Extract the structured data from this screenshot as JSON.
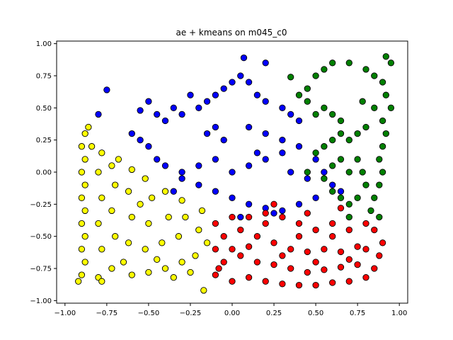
{
  "chart_data": {
    "type": "scatter",
    "title": "ae + kmeans on m045_c0",
    "xlabel": "",
    "ylabel": "",
    "xlim": [
      -1.05,
      1.05
    ],
    "ylim": [
      -1.02,
      1.02
    ],
    "xticks": [
      -1.0,
      -0.75,
      -0.5,
      -0.25,
      0.0,
      0.25,
      0.5,
      0.75,
      1.0
    ],
    "xtick_labels": [
      "−1.00",
      "−0.75",
      "−0.50",
      "−0.25",
      "0.00",
      "0.25",
      "0.50",
      "0.75",
      "1.00"
    ],
    "yticks": [
      -1.0,
      -0.75,
      -0.5,
      -0.25,
      0.0,
      0.25,
      0.5,
      0.75,
      1.0
    ],
    "ytick_labels": [
      "−1.00",
      "−0.75",
      "−0.50",
      "−0.25",
      "0.00",
      "0.25",
      "0.50",
      "0.75",
      "1.00"
    ],
    "grid": false,
    "legend": "none",
    "marker": "circle",
    "marker_edge": "#000000",
    "series": [
      {
        "color": "#ffff00",
        "points": [
          [
            -0.92,
            -0.85
          ],
          [
            -0.9,
            -0.8
          ],
          [
            -0.88,
            -0.7
          ],
          [
            -0.9,
            -0.6
          ],
          [
            -0.88,
            -0.5
          ],
          [
            -0.9,
            -0.4
          ],
          [
            -0.88,
            -0.3
          ],
          [
            -0.9,
            -0.2
          ],
          [
            -0.88,
            -0.1
          ],
          [
            -0.9,
            0.0
          ],
          [
            -0.88,
            0.1
          ],
          [
            -0.9,
            0.2
          ],
          [
            -0.88,
            0.3
          ],
          [
            -0.86,
            0.35
          ],
          [
            -0.8,
            -0.82
          ],
          [
            -0.78,
            -0.6
          ],
          [
            -0.8,
            -0.4
          ],
          [
            -0.78,
            -0.2
          ],
          [
            -0.8,
            0.0
          ],
          [
            -0.72,
            -0.75
          ],
          [
            -0.7,
            -0.5
          ],
          [
            -0.72,
            -0.3
          ],
          [
            -0.7,
            -0.1
          ],
          [
            -0.72,
            0.05
          ],
          [
            -0.6,
            -0.8
          ],
          [
            -0.62,
            -0.55
          ],
          [
            -0.6,
            -0.35
          ],
          [
            -0.62,
            -0.15
          ],
          [
            -0.6,
            0.02
          ],
          [
            -0.5,
            -0.78
          ],
          [
            -0.52,
            -0.6
          ],
          [
            -0.5,
            -0.4
          ],
          [
            -0.48,
            -0.2
          ],
          [
            -0.52,
            -0.05
          ],
          [
            -0.4,
            -0.75
          ],
          [
            -0.42,
            -0.55
          ],
          [
            -0.38,
            -0.35
          ],
          [
            -0.4,
            -0.15
          ],
          [
            -0.3,
            -0.7
          ],
          [
            -0.32,
            -0.5
          ],
          [
            -0.28,
            -0.35
          ],
          [
            -0.3,
            -0.22
          ],
          [
            -0.22,
            -0.65
          ],
          [
            -0.2,
            -0.45
          ],
          [
            -0.18,
            -0.3
          ],
          [
            -0.15,
            -0.55
          ],
          [
            -0.17,
            -0.92
          ],
          [
            -0.68,
            0.1
          ],
          [
            -0.78,
            0.15
          ],
          [
            -0.84,
            0.2
          ],
          [
            -0.78,
            -0.85
          ],
          [
            -0.65,
            -0.7
          ],
          [
            -0.45,
            -0.68
          ],
          [
            -0.35,
            -0.82
          ],
          [
            -0.25,
            -0.78
          ],
          [
            -0.55,
            -0.25
          ]
        ]
      },
      {
        "color": "#0000ff",
        "points": [
          [
            -0.5,
            0.55
          ],
          [
            -0.45,
            0.45
          ],
          [
            -0.4,
            0.4
          ],
          [
            -0.35,
            0.5
          ],
          [
            -0.3,
            0.45
          ],
          [
            -0.2,
            0.5
          ],
          [
            -0.15,
            0.55
          ],
          [
            -0.1,
            0.6
          ],
          [
            -0.05,
            0.65
          ],
          [
            0.0,
            0.7
          ],
          [
            0.05,
            0.75
          ],
          [
            0.1,
            0.7
          ],
          [
            0.15,
            0.6
          ],
          [
            0.2,
            0.55
          ],
          [
            0.3,
            0.5
          ],
          [
            0.35,
            0.45
          ],
          [
            0.4,
            0.4
          ],
          [
            -0.6,
            0.3
          ],
          [
            -0.55,
            0.25
          ],
          [
            -0.5,
            0.2
          ],
          [
            -0.45,
            0.1
          ],
          [
            -0.4,
            0.05
          ],
          [
            -0.3,
            0.0
          ],
          [
            -0.2,
            0.05
          ],
          [
            -0.1,
            0.1
          ],
          [
            0.0,
            0.0
          ],
          [
            0.1,
            0.05
          ],
          [
            0.2,
            0.1
          ],
          [
            0.3,
            0.15
          ],
          [
            0.4,
            0.2
          ],
          [
            0.5,
            0.1
          ],
          [
            0.55,
            0.0
          ],
          [
            0.6,
            -0.1
          ],
          [
            0.65,
            -0.15
          ],
          [
            0.5,
            -0.2
          ],
          [
            0.4,
            -0.25
          ],
          [
            0.3,
            -0.3
          ],
          [
            0.2,
            -0.28
          ],
          [
            0.1,
            -0.25
          ],
          [
            0.0,
            -0.2
          ],
          [
            -0.1,
            -0.15
          ],
          [
            -0.2,
            -0.1
          ],
          [
            -0.3,
            -0.05
          ],
          [
            -0.35,
            -0.15
          ],
          [
            0.1,
            0.35
          ],
          [
            0.2,
            0.3
          ],
          [
            0.3,
            0.25
          ],
          [
            -0.1,
            0.35
          ],
          [
            -0.05,
            0.25
          ],
          [
            0.15,
            0.15
          ],
          [
            -0.15,
            0.3
          ],
          [
            -0.75,
            0.64
          ],
          [
            -0.8,
            0.45
          ],
          [
            0.07,
            0.89
          ],
          [
            0.2,
            0.85
          ],
          [
            -0.25,
            0.6
          ],
          [
            0.05,
            -0.35
          ],
          [
            0.25,
            -0.32
          ],
          [
            -0.55,
            0.48
          ],
          [
            0.35,
            0.0
          ],
          [
            0.45,
            -0.05
          ]
        ]
      },
      {
        "color": "#008000",
        "points": [
          [
            0.45,
            0.65
          ],
          [
            0.5,
            0.75
          ],
          [
            0.55,
            0.8
          ],
          [
            0.6,
            0.85
          ],
          [
            0.7,
            0.85
          ],
          [
            0.8,
            0.8
          ],
          [
            0.85,
            0.75
          ],
          [
            0.9,
            0.7
          ],
          [
            0.92,
            0.6
          ],
          [
            0.95,
            0.5
          ],
          [
            0.9,
            0.4
          ],
          [
            0.92,
            0.3
          ],
          [
            0.9,
            0.2
          ],
          [
            0.88,
            0.1
          ],
          [
            0.9,
            0.0
          ],
          [
            0.88,
            -0.1
          ],
          [
            0.85,
            -0.2
          ],
          [
            0.83,
            -0.3
          ],
          [
            0.8,
            0.35
          ],
          [
            0.75,
            0.3
          ],
          [
            0.7,
            0.25
          ],
          [
            0.65,
            0.3
          ],
          [
            0.6,
            0.25
          ],
          [
            0.55,
            0.2
          ],
          [
            0.5,
            0.15
          ],
          [
            0.45,
            0.0
          ],
          [
            0.55,
            -0.05
          ],
          [
            0.6,
            -0.15
          ],
          [
            0.65,
            -0.2
          ],
          [
            0.7,
            -0.25
          ],
          [
            0.75,
            -0.2
          ],
          [
            0.8,
            -0.1
          ],
          [
            0.78,
            0.0
          ],
          [
            0.75,
            0.1
          ],
          [
            0.7,
            0.0
          ],
          [
            0.65,
            0.1
          ],
          [
            0.6,
            0.05
          ],
          [
            0.45,
            0.55
          ],
          [
            0.4,
            0.6
          ],
          [
            0.5,
            0.45
          ],
          [
            0.55,
            0.5
          ],
          [
            0.6,
            0.45
          ],
          [
            0.65,
            0.4
          ],
          [
            0.92,
            0.9
          ],
          [
            0.95,
            0.85
          ],
          [
            0.78,
            0.55
          ],
          [
            0.85,
            0.5
          ],
          [
            0.88,
            -0.35
          ],
          [
            0.7,
            -0.35
          ],
          [
            0.35,
            0.74
          ]
        ]
      },
      {
        "color": "#ff0000",
        "points": [
          [
            -0.1,
            -0.4
          ],
          [
            -0.05,
            -0.5
          ],
          [
            0.0,
            -0.6
          ],
          [
            -0.05,
            -0.7
          ],
          [
            -0.1,
            -0.8
          ],
          [
            0.0,
            -0.85
          ],
          [
            0.1,
            -0.82
          ],
          [
            0.2,
            -0.85
          ],
          [
            0.3,
            -0.87
          ],
          [
            0.4,
            -0.88
          ],
          [
            0.5,
            -0.88
          ],
          [
            0.6,
            -0.86
          ],
          [
            0.7,
            -0.85
          ],
          [
            0.8,
            -0.82
          ],
          [
            0.85,
            -0.75
          ],
          [
            0.88,
            -0.65
          ],
          [
            0.9,
            -0.55
          ],
          [
            0.85,
            -0.45
          ],
          [
            0.8,
            -0.4
          ],
          [
            0.7,
            -0.45
          ],
          [
            0.6,
            -0.4
          ],
          [
            0.5,
            -0.45
          ],
          [
            0.4,
            -0.4
          ],
          [
            0.3,
            -0.35
          ],
          [
            0.2,
            -0.32
          ],
          [
            0.1,
            -0.35
          ],
          [
            0.0,
            -0.35
          ],
          [
            0.05,
            -0.45
          ],
          [
            0.15,
            -0.5
          ],
          [
            0.25,
            -0.55
          ],
          [
            0.35,
            -0.6
          ],
          [
            0.45,
            -0.62
          ],
          [
            0.55,
            -0.6
          ],
          [
            0.65,
            -0.62
          ],
          [
            0.75,
            -0.58
          ],
          [
            0.05,
            -0.65
          ],
          [
            0.15,
            -0.7
          ],
          [
            0.25,
            -0.72
          ],
          [
            0.35,
            -0.75
          ],
          [
            0.45,
            -0.78
          ],
          [
            0.55,
            -0.76
          ],
          [
            0.65,
            -0.74
          ],
          [
            0.75,
            -0.72
          ],
          [
            -0.1,
            -0.6
          ],
          [
            -0.08,
            -0.75
          ],
          [
            0.2,
            -0.4
          ],
          [
            0.4,
            -0.5
          ],
          [
            0.6,
            -0.5
          ],
          [
            0.8,
            -0.6
          ],
          [
            0.1,
            -0.58
          ],
          [
            0.3,
            -0.65
          ],
          [
            0.5,
            -0.7
          ],
          [
            0.7,
            -0.68
          ],
          [
            0.25,
            -0.25
          ],
          [
            0.45,
            -0.32
          ],
          [
            0.65,
            -0.28
          ]
        ]
      }
    ]
  }
}
